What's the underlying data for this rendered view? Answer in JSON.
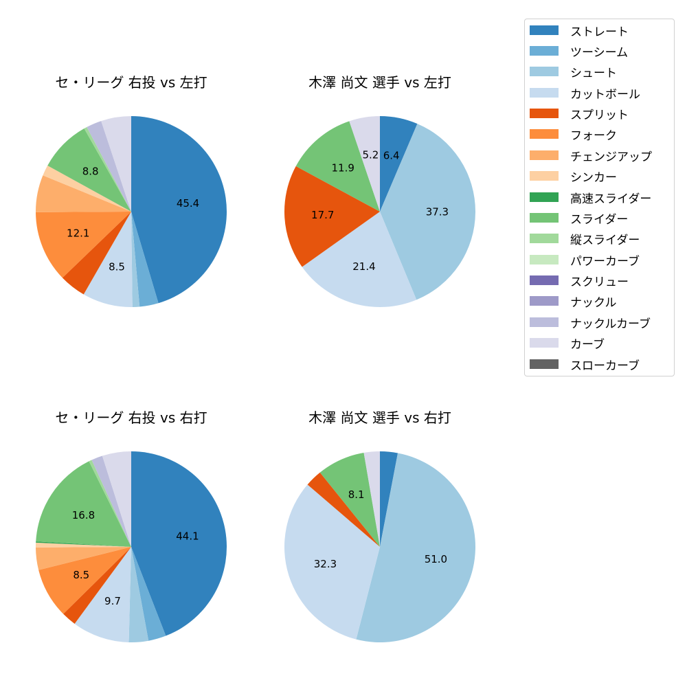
{
  "legend": {
    "items": [
      {
        "label": "ストレート",
        "color": "#3182bd"
      },
      {
        "label": "ツーシーム",
        "color": "#6baed6"
      },
      {
        "label": "シュート",
        "color": "#9ecae1"
      },
      {
        "label": "カットボール",
        "color": "#c6dbef"
      },
      {
        "label": "スプリット",
        "color": "#e6550d"
      },
      {
        "label": "フォーク",
        "color": "#fd8d3c"
      },
      {
        "label": "チェンジアップ",
        "color": "#fdae6b"
      },
      {
        "label": "シンカー",
        "color": "#fdd0a2"
      },
      {
        "label": "高速スライダー",
        "color": "#31a354"
      },
      {
        "label": "スライダー",
        "color": "#74c476"
      },
      {
        "label": "縦スライダー",
        "color": "#a1d99b"
      },
      {
        "label": "パワーカーブ",
        "color": "#c7e9c0"
      },
      {
        "label": "スクリュー",
        "color": "#756bb1"
      },
      {
        "label": "ナックル",
        "color": "#9e9ac8"
      },
      {
        "label": "ナックルカーブ",
        "color": "#bcbddc"
      },
      {
        "label": "カーブ",
        "color": "#dadaeb"
      },
      {
        "label": "スローカーブ",
        "color": "#636363"
      }
    ]
  },
  "chart_data": [
    {
      "type": "pie",
      "title": "セ・リーグ 右投 vs 左打",
      "categories": [
        "ストレート",
        "ツーシーム",
        "シュート",
        "カットボール",
        "スプリット",
        "フォーク",
        "チェンジアップ",
        "シンカー",
        "スライダー",
        "縦スライダー",
        "ナックルカーブ",
        "カーブ"
      ],
      "values": [
        45.4,
        3.2,
        1.2,
        8.5,
        4.5,
        12.1,
        6.3,
        1.8,
        8.8,
        0.5,
        2.6,
        5.1
      ],
      "labels_shown": [
        "45.4",
        "",
        "",
        "8.5",
        "",
        "12.1",
        "",
        "",
        "8.8",
        "",
        "",
        ""
      ],
      "start_angle": 90,
      "direction": "clockwise"
    },
    {
      "type": "pie",
      "title": "木澤 尚文 選手 vs 左打",
      "categories": [
        "ストレート",
        "シュート",
        "カットボール",
        "スプリット",
        "スライダー",
        "カーブ"
      ],
      "values": [
        6.4,
        37.3,
        21.4,
        17.7,
        11.9,
        5.2
      ],
      "labels_shown": [
        "6.4",
        "37.3",
        "21.4",
        "17.7",
        "11.9",
        "5.2"
      ],
      "start_angle": 90,
      "direction": "clockwise"
    },
    {
      "type": "pie",
      "title": "セ・リーグ 右投 vs 右打",
      "categories": [
        "ストレート",
        "ツーシーム",
        "シュート",
        "カットボール",
        "スプリット",
        "フォーク",
        "チェンジアップ",
        "シンカー",
        "高速スライダー",
        "スライダー",
        "縦スライダー",
        "ナックルカーブ",
        "カーブ"
      ],
      "values": [
        44.1,
        3.0,
        3.3,
        9.7,
        2.5,
        8.5,
        3.8,
        0.8,
        0.2,
        16.8,
        0.5,
        1.9,
        4.9
      ],
      "labels_shown": [
        "44.1",
        "",
        "",
        "9.7",
        "",
        "8.5",
        "",
        "",
        "",
        "16.8",
        "",
        "",
        ""
      ],
      "start_angle": 90,
      "direction": "clockwise"
    },
    {
      "type": "pie",
      "title": "木澤 尚文 選手 vs 右打",
      "categories": [
        "ストレート",
        "シュート",
        "カットボール",
        "スプリット",
        "スライダー",
        "カーブ"
      ],
      "values": [
        3.0,
        51.0,
        32.3,
        2.9,
        8.1,
        2.7
      ],
      "labels_shown": [
        "",
        "51.0",
        "32.3",
        "",
        "8.1",
        ""
      ],
      "start_angle": 90,
      "direction": "clockwise"
    }
  ]
}
